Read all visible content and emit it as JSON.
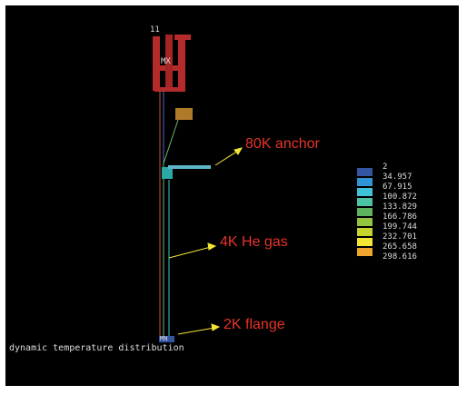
{
  "model": {
    "node_label": "11",
    "max_label": "MX",
    "min_label": "MN"
  },
  "annotations": [
    "80K anchor",
    "4K He gas",
    "2K flange"
  ],
  "caption": "dynamic temperature distribution",
  "legend": {
    "entries": [
      {
        "label": "2",
        "color": "#3454a4"
      },
      {
        "label": "34.957",
        "color": "#2f95d6"
      },
      {
        "label": "67.915",
        "color": "#3fc3d6"
      },
      {
        "label": "100.872",
        "color": "#4cc4a3"
      },
      {
        "label": "133.829",
        "color": "#5eb45e"
      },
      {
        "label": "166.786",
        "color": "#93c53e"
      },
      {
        "label": "199.744",
        "color": "#c6d42e"
      },
      {
        "label": "232.701",
        "color": "#f3e634"
      },
      {
        "label": "265.658",
        "color": "#f0a52e"
      },
      {
        "label": "298.616"
      }
    ]
  }
}
